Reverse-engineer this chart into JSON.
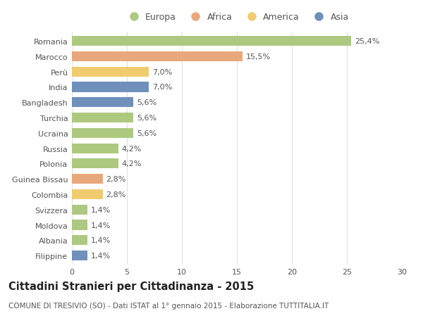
{
  "countries": [
    "Romania",
    "Marocco",
    "Perù",
    "India",
    "Bangladesh",
    "Turchia",
    "Ucraina",
    "Russia",
    "Polonia",
    "Guinea Bissau",
    "Colombia",
    "Svizzera",
    "Moldova",
    "Albania",
    "Filippine"
  ],
  "values": [
    25.4,
    15.5,
    7.0,
    7.0,
    5.6,
    5.6,
    5.6,
    4.2,
    4.2,
    2.8,
    2.8,
    1.4,
    1.4,
    1.4,
    1.4
  ],
  "labels": [
    "25,4%",
    "15,5%",
    "7,0%",
    "7,0%",
    "5,6%",
    "5,6%",
    "5,6%",
    "4,2%",
    "4,2%",
    "2,8%",
    "2,8%",
    "1,4%",
    "1,4%",
    "1,4%",
    "1,4%"
  ],
  "continents": [
    "Europa",
    "Africa",
    "America",
    "Asia",
    "Asia",
    "Europa",
    "Europa",
    "Europa",
    "Europa",
    "Africa",
    "America",
    "Europa",
    "Europa",
    "Europa",
    "Asia"
  ],
  "continent_colors": {
    "Europa": "#adc980",
    "Africa": "#e8a87c",
    "America": "#f0cc6e",
    "Asia": "#7090bb"
  },
  "legend_order": [
    "Europa",
    "Africa",
    "America",
    "Asia"
  ],
  "legend_colors": [
    "#adc980",
    "#e8a87c",
    "#f0cc6e",
    "#7090bb"
  ],
  "xlim": [
    0,
    30
  ],
  "xticks": [
    0,
    5,
    10,
    15,
    20,
    25,
    30
  ],
  "title": "Cittadini Stranieri per Cittadinanza - 2015",
  "subtitle": "COMUNE DI TRESIVIO (SO) - Dati ISTAT al 1° gennaio 2015 - Elaborazione TUTTITALIA.IT",
  "bg_color": "#ffffff",
  "bar_height": 0.65,
  "label_fontsize": 8,
  "tick_fontsize": 8,
  "title_fontsize": 10.5,
  "subtitle_fontsize": 7.5,
  "text_color": "#555555",
  "title_color": "#222222",
  "grid_color": "#e0e0e0"
}
